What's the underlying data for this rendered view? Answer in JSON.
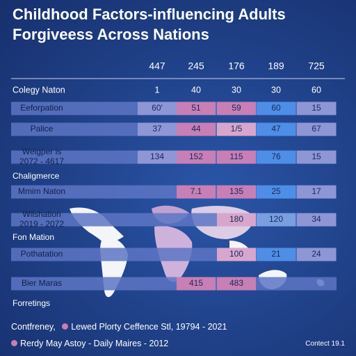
{
  "title": "Childhood Factors-influencing Adults Forgiveess Across Nations",
  "legend": [
    {
      "label": "Contfreney,",
      "dot": false
    },
    {
      "label": "Lewed Plorty Ceffence Stl, 19794 - 2021",
      "dot": true
    },
    {
      "label": "Rerdy May Astoy - Daily Maires - 2012",
      "dot": true
    }
  ],
  "credit": "Contect 19.1",
  "colors": {
    "background": "#1f3f86",
    "row_band": "#5d76c4",
    "pink": "#c87fb5",
    "light_pink": "#d8a6cd",
    "blue": "#4f8ee6",
    "light_blue": "#7a9fe0",
    "lavender": "#8e96d6",
    "map": "#ffffff"
  },
  "chart_data": {
    "type": "table",
    "columns": [
      "447",
      "245",
      "176",
      "189",
      "725"
    ],
    "subheader": {
      "label": "Colegy Naton",
      "values": [
        "1",
        "40",
        "30",
        "30",
        "60"
      ]
    },
    "rows": [
      {
        "label": [
          "Eeforpation"
        ],
        "values": [
          "60'",
          "51",
          "59",
          "60",
          "15"
        ],
        "fills": [
          "lavender",
          "pink",
          "pink",
          "blue",
          "lavender"
        ],
        "band": true
      },
      {
        "label": [
          "Palice"
        ],
        "values": [
          "37",
          "44",
          "1/5",
          "47",
          "67"
        ],
        "fills": [
          "lavender",
          "pink",
          "light_pink",
          "blue",
          "lavender"
        ],
        "band": true
      },
      {
        "label": [
          "Weigper is",
          "2072 - 4617"
        ],
        "values": [
          "134",
          "152",
          "115",
          "76",
          "15"
        ],
        "fills": [
          "lavender",
          "pink",
          "pink",
          "blue",
          "lavender"
        ],
        "band": true
      },
      {
        "label": [
          "Chaligmerce"
        ],
        "values": [
          "",
          "",
          "",
          "",
          ""
        ],
        "fills": [
          "",
          "",
          "",
          "",
          ""
        ],
        "band": false
      },
      {
        "label": [
          "Mmim Naton"
        ],
        "values": [
          "",
          "7.1",
          "135",
          "25",
          "17"
        ],
        "fills": [
          "",
          "pink",
          "pink",
          "blue",
          "lavender"
        ],
        "band": true
      },
      {
        "label": [
          "Wilshation",
          "2019 - 2072"
        ],
        "values": [
          "",
          "",
          "180",
          "120",
          "34"
        ],
        "fills": [
          "",
          "",
          "light_pink",
          "light_blue",
          "lavender"
        ],
        "band": true
      },
      {
        "label": [
          "Fon Mation"
        ],
        "values": [
          "",
          "",
          "",
          "",
          ""
        ],
        "fills": [
          "",
          "",
          "",
          "",
          ""
        ],
        "band": false
      },
      {
        "label": [
          "Pothatation"
        ],
        "values": [
          "",
          "",
          "100",
          "21",
          "24"
        ],
        "fills": [
          "",
          "",
          "light_pink",
          "blue",
          "lavender"
        ],
        "band": true
      },
      {
        "label": [
          "Bier Maras"
        ],
        "values": [
          "",
          "415",
          "483",
          "",
          ""
        ],
        "fills": [
          "",
          "pink",
          "pink",
          "",
          ""
        ],
        "band": true
      },
      {
        "label": [
          "Forretings"
        ],
        "values": [
          "",
          "",
          "",
          "",
          ""
        ],
        "fills": [
          "",
          "",
          "",
          "",
          ""
        ],
        "band": false
      }
    ]
  }
}
